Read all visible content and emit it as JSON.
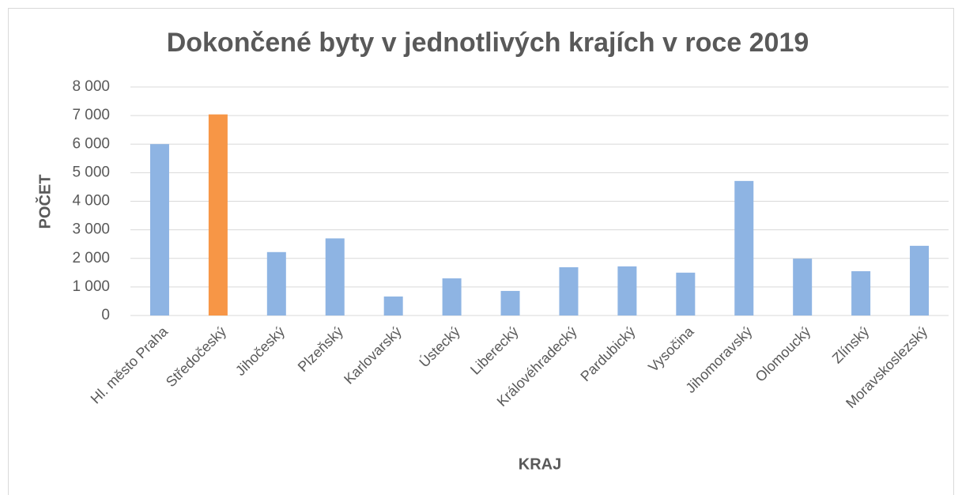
{
  "chart_data": {
    "type": "bar",
    "title": "Dokončené byty v jednotlivých krajích v roce 2019",
    "x_label": "KRAJ",
    "y_label": "POČET",
    "categories": [
      "Hl. město Praha",
      "Středočeský",
      "Jihočeský",
      "Plzeňský",
      "Karlovarský",
      "Ústecký",
      "Liberecký",
      "Královéhradecký",
      "Pardubický",
      "Vysočina",
      "Jihomoravský",
      "Olomoucký",
      "Zlínský",
      "Moravskoslezský"
    ],
    "values": [
      6000,
      7040,
      2220,
      2700,
      665,
      1300,
      860,
      1690,
      1720,
      1500,
      4710,
      1990,
      1550,
      2440
    ],
    "colors": [
      "#8eb4e3",
      "#f79646",
      "#8eb4e3",
      "#8eb4e3",
      "#8eb4e3",
      "#8eb4e3",
      "#8eb4e3",
      "#8eb4e3",
      "#8eb4e3",
      "#8eb4e3",
      "#8eb4e3",
      "#8eb4e3",
      "#8eb4e3",
      "#8eb4e3"
    ],
    "ylim": [
      0,
      8000
    ],
    "yticks": [
      0,
      {
        "value": 1000,
        "label": "1 000"
      },
      {
        "value": 2000,
        "label": "2 000"
      },
      {
        "value": 3000,
        "label": "3 000"
      },
      {
        "value": 4000,
        "label": "4 000"
      },
      {
        "value": 5000,
        "label": "5 000"
      },
      {
        "value": 6000,
        "label": "6 000"
      },
      {
        "value": 7000,
        "label": "7 000"
      },
      {
        "value": 8000,
        "label": "8 000"
      }
    ],
    "grid": true
  }
}
